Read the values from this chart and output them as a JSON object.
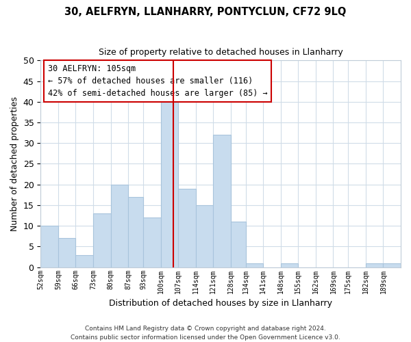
{
  "title": "30, AELFRYN, LLANHARRY, PONTYCLUN, CF72 9LQ",
  "subtitle": "Size of property relative to detached houses in Llanharry",
  "xlabel": "Distribution of detached houses by size in Llanharry",
  "ylabel": "Number of detached properties",
  "bar_color": "#c8dcee",
  "bar_edge_color": "#a8c4dc",
  "background_color": "#ffffff",
  "grid_color": "#d0dce8",
  "annotation_box_edge": "#cc0000",
  "vline_color": "#cc0000",
  "bin_labels": [
    "52sqm",
    "59sqm",
    "66sqm",
    "73sqm",
    "80sqm",
    "87sqm",
    "93sqm",
    "100sqm",
    "107sqm",
    "114sqm",
    "121sqm",
    "128sqm",
    "134sqm",
    "141sqm",
    "148sqm",
    "155sqm",
    "162sqm",
    "169sqm",
    "175sqm",
    "182sqm",
    "189sqm"
  ],
  "bin_edges": [
    52,
    59,
    66,
    73,
    80,
    87,
    93,
    100,
    107,
    114,
    121,
    128,
    134,
    141,
    148,
    155,
    162,
    169,
    175,
    182,
    189,
    196
  ],
  "bar_heights": [
    10,
    7,
    3,
    13,
    20,
    17,
    12,
    40,
    19,
    15,
    32,
    11,
    1,
    0,
    1,
    0,
    0,
    0,
    0,
    1,
    1
  ],
  "ylim": [
    0,
    50
  ],
  "yticks": [
    0,
    5,
    10,
    15,
    20,
    25,
    30,
    35,
    40,
    45,
    50
  ],
  "vline_x": 105,
  "annotation_text_line1": "30 AELFRYN: 105sqm",
  "annotation_text_line2": "← 57% of detached houses are smaller (116)",
  "annotation_text_line3": "42% of semi-detached houses are larger (85) →",
  "footer_line1": "Contains HM Land Registry data © Crown copyright and database right 2024.",
  "footer_line2": "Contains public sector information licensed under the Open Government Licence v3.0."
}
